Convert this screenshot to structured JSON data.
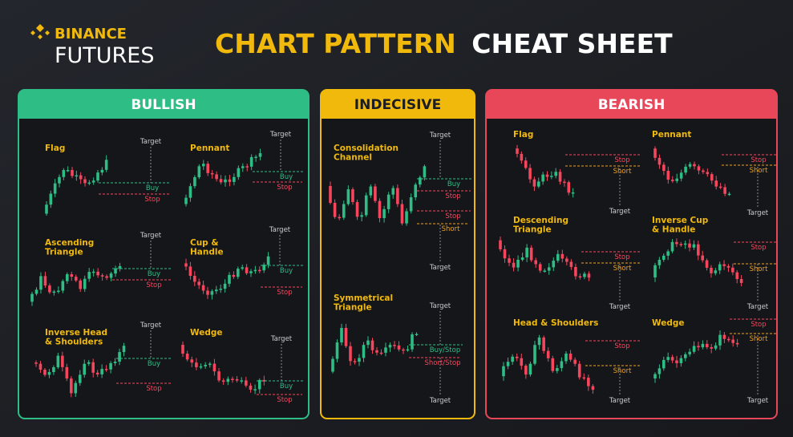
{
  "header": {
    "brand_top": "BINANCE",
    "brand_bottom": "FUTURES",
    "title_highlight": "CHART PATTERN",
    "title_rest": "CHEAT SHEET"
  },
  "panels": [
    {
      "title": "BULLISH",
      "patterns": [
        {
          "name": [
            "Flag"
          ],
          "labels": [
            "Target",
            "Buy",
            "Stop"
          ]
        },
        {
          "name": [
            "Pennant"
          ],
          "labels": [
            "Target",
            "Buy",
            "Stop"
          ]
        },
        {
          "name": [
            "Ascending",
            "Triangle"
          ],
          "labels": [
            "Target",
            "Buy",
            "Stop"
          ]
        },
        {
          "name": [
            "Cup &",
            "Handle"
          ],
          "labels": [
            "Target",
            "Buy",
            "Stop"
          ]
        },
        {
          "name": [
            "Inverse Head",
            "& Shoulders"
          ],
          "labels": [
            "Target",
            "Buy",
            "Stop"
          ]
        },
        {
          "name": [
            "Wedge"
          ],
          "labels": [
            "Target",
            "Buy",
            "Stop"
          ]
        }
      ]
    },
    {
      "title": "INDECISIVE",
      "patterns": [
        {
          "name": [
            "Consolidation",
            "Channel"
          ],
          "labels": [
            "Target",
            "Buy",
            "Stop",
            "Stop",
            "Short",
            "Target"
          ]
        },
        {
          "name": [
            "Symmetrical",
            "Triangle"
          ],
          "labels": [
            "Target",
            "Buy/Stop",
            "Short/Stop",
            "Target"
          ]
        }
      ]
    },
    {
      "title": "BEARISH",
      "patterns": [
        {
          "name": [
            "Flag"
          ],
          "labels": [
            "Stop",
            "Short",
            "Target"
          ]
        },
        {
          "name": [
            "Pennant"
          ],
          "labels": [
            "Stop",
            "Short",
            "Target"
          ]
        },
        {
          "name": [
            "Descending",
            "Triangle"
          ],
          "labels": [
            "Stop",
            "Short",
            "Target"
          ]
        },
        {
          "name": [
            "Inverse Cup",
            "& Handle"
          ],
          "labels": [
            "Stop",
            "Short",
            "Target"
          ]
        },
        {
          "name": [
            "Head & Shoulders"
          ],
          "labels": [
            "Stop",
            "Short",
            "Target"
          ]
        },
        {
          "name": [
            "Wedge"
          ],
          "labels": [
            "Stop",
            "Short",
            "Target"
          ]
        }
      ]
    }
  ]
}
